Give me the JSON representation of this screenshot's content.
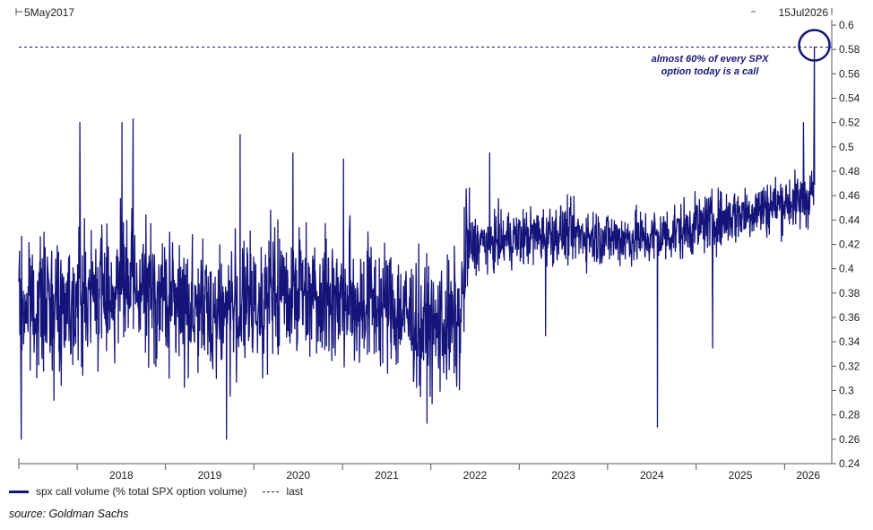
{
  "chart_data": {
    "type": "line",
    "start_label": "5May2017",
    "end_label": "15Jul2026",
    "x_tick_labels": [
      "2018",
      "2019",
      "2020",
      "2021",
      "2022",
      "2023",
      "2024",
      "2025",
      "2026"
    ],
    "y_tick_labels": [
      "0.24",
      "0.26",
      "0.28",
      "0.3",
      "0.32",
      "0.34",
      "0.36",
      "0.38",
      "0.4",
      "0.42",
      "0.44",
      "0.46",
      "0.48",
      "0.5",
      "0.52",
      "0.54",
      "0.56",
      "0.58",
      "0.6"
    ],
    "ylim": [
      0.24,
      0.6
    ],
    "xlim": [
      "2017-05-05",
      "2026-07-15"
    ],
    "grid": false,
    "series": [
      {
        "name": "spx call volume (% total SPX option volume)",
        "color": "#14147a",
        "anchor_dates": [
          "2017-05-05",
          "2017-09-01",
          "2018-01-01",
          "2018-07-01",
          "2019-01-01",
          "2019-07-01",
          "2020-01-01",
          "2020-07-01",
          "2021-01-01",
          "2021-07-01",
          "2022-01-01",
          "2022-05-01",
          "2022-06-01",
          "2023-01-01",
          "2023-07-01",
          "2024-01-01",
          "2024-07-01",
          "2025-01-01",
          "2025-07-01",
          "2026-01-01",
          "2026-04-01",
          "2026-04-20",
          "2026-05-01"
        ],
        "anchor_values": [
          0.37,
          0.37,
          0.375,
          0.385,
          0.375,
          0.365,
          0.37,
          0.385,
          0.375,
          0.37,
          0.35,
          0.355,
          0.42,
          0.425,
          0.43,
          0.425,
          0.425,
          0.435,
          0.445,
          0.455,
          0.455,
          0.465,
          0.46
        ],
        "spikes": [
          {
            "date": "2017-05-15",
            "value": 0.26
          },
          {
            "date": "2018-01-12",
            "value": 0.52
          },
          {
            "date": "2018-07-05",
            "value": 0.52
          },
          {
            "date": "2018-08-20",
            "value": 0.523
          },
          {
            "date": "2019-09-10",
            "value": 0.26
          },
          {
            "date": "2019-11-05",
            "value": 0.51
          },
          {
            "date": "2020-06-10",
            "value": 0.495
          },
          {
            "date": "2021-01-05",
            "value": 0.49
          },
          {
            "date": "2021-11-20",
            "value": 0.295
          },
          {
            "date": "2022-09-01",
            "value": 0.495
          },
          {
            "date": "2023-04-20",
            "value": 0.345
          },
          {
            "date": "2024-07-25",
            "value": 0.27
          },
          {
            "date": "2025-03-10",
            "value": 0.335
          },
          {
            "date": "2026-03-20",
            "value": 0.52
          },
          {
            "date": "2026-05-04",
            "value": 0.582
          }
        ]
      }
    ],
    "last": {
      "name": "last",
      "value": 0.582,
      "style": "dashed"
    },
    "annotation": "almost 60% of every SPX option today is a call"
  },
  "legend": {
    "series_label": "spx call volume (% total SPX option volume)",
    "last_label": "last"
  },
  "source": "source: Goldman Sachs",
  "colors": {
    "line": "#14147a",
    "axis": "#555555"
  }
}
